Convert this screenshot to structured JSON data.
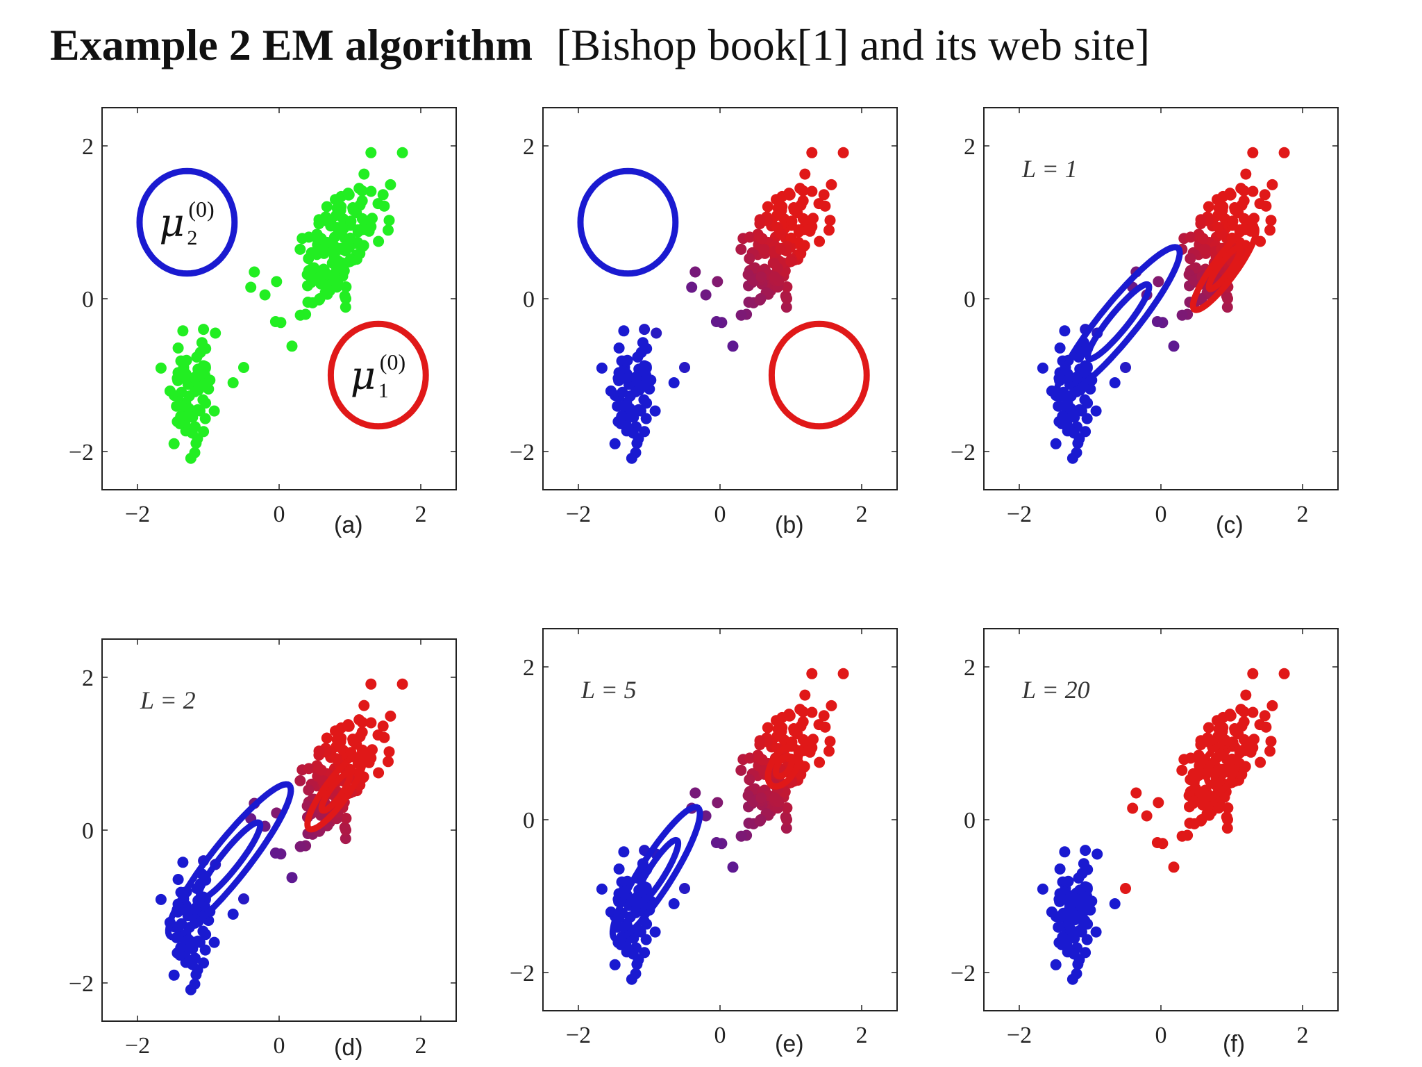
{
  "title": {
    "bold": "Example 2  EM algorithm",
    "normal": "[Bishop book[1] and its web site]"
  },
  "colors": {
    "cluster_blue": "#1a1ad0",
    "cluster_red": "#e01818",
    "unassigned_green": "#22ee22",
    "frame": "#222222"
  },
  "chart_data": [
    {
      "id": "a",
      "type": "scatter",
      "sublabel": "(a)",
      "annotation": "",
      "xlim": [
        -2.5,
        2.5
      ],
      "ylim": [
        -2.5,
        2.5
      ],
      "xticks": [
        -2,
        0,
        2
      ],
      "yticks": [
        -2,
        0,
        2
      ],
      "xtick_labels": [
        "−2",
        "0",
        "2"
      ],
      "ytick_labels": [
        "−2",
        "0",
        "2"
      ],
      "point_color_mode": "green",
      "components": [
        {
          "color": "blue",
          "mean": [
            -1.3,
            1.0
          ],
          "cov": [
            [
              0.45,
              0
            ],
            [
              0,
              0.45
            ]
          ],
          "contours": [
            1
          ],
          "label": "μ",
          "sub": "2",
          "sup": "(0)"
        },
        {
          "color": "red",
          "mean": [
            1.4,
            -1.0
          ],
          "cov": [
            [
              0.45,
              0
            ],
            [
              0,
              0.45
            ]
          ],
          "contours": [
            1
          ],
          "label": "μ",
          "sub": "1",
          "sup": "(0)"
        }
      ]
    },
    {
      "id": "b",
      "type": "scatter",
      "sublabel": "(b)",
      "annotation": "",
      "xlim": [
        -2.5,
        2.5
      ],
      "ylim": [
        -2.5,
        2.5
      ],
      "xticks": [
        -2,
        0,
        2
      ],
      "yticks": [
        -2,
        0,
        2
      ],
      "xtick_labels": [
        "−2",
        "0",
        "2"
      ],
      "ytick_labels": [
        "−2",
        "0",
        "2"
      ],
      "point_color_mode": "gradient",
      "components": [
        {
          "color": "blue",
          "mean": [
            -1.3,
            1.0
          ],
          "cov": [
            [
              0.45,
              0
            ],
            [
              0,
              0.45
            ]
          ],
          "contours": [
            1
          ]
        },
        {
          "color": "red",
          "mean": [
            1.4,
            -1.0
          ],
          "cov": [
            [
              0.45,
              0
            ],
            [
              0,
              0.45
            ]
          ],
          "contours": [
            1
          ]
        }
      ]
    },
    {
      "id": "c",
      "type": "scatter",
      "sublabel": "(c)",
      "annotation": "L = 1",
      "xlim": [
        -2.5,
        2.5
      ],
      "ylim": [
        -2.5,
        2.5
      ],
      "xticks": [
        -2,
        0,
        2
      ],
      "yticks": [
        -2,
        0,
        2
      ],
      "xtick_labels": [
        "−2",
        "0",
        "2"
      ],
      "ytick_labels": [
        "−2",
        "0",
        "2"
      ],
      "point_color_mode": "gradient",
      "components": [
        {
          "color": "blue",
          "mean": [
            -0.6,
            -0.3
          ],
          "cov": [
            [
              0.75,
              0.78
            ],
            [
              0.78,
              0.95
            ]
          ],
          "contours": [
            0.5,
            1
          ]
        },
        {
          "color": "red",
          "mean": [
            0.9,
            0.4
          ],
          "cov": [
            [
              0.2,
              0.22
            ],
            [
              0.22,
              0.3
            ]
          ],
          "contours": [
            0.5,
            1
          ]
        }
      ]
    },
    {
      "id": "d",
      "type": "scatter",
      "sublabel": "(d)",
      "annotation": "L = 2",
      "xlim": [
        -2.5,
        2.5
      ],
      "ylim": [
        -2.5,
        2.5
      ],
      "xticks": [
        -2,
        0,
        2
      ],
      "yticks": [
        -2,
        0,
        2
      ],
      "xtick_labels": [
        "−2",
        "0",
        "2"
      ],
      "ytick_labels": [
        "−2",
        "0",
        "2"
      ],
      "point_color_mode": "gradient",
      "components": [
        {
          "color": "blue",
          "mean": [
            -0.7,
            -0.4
          ],
          "cov": [
            [
              0.75,
              0.8
            ],
            [
              0.8,
              1.0
            ]
          ],
          "contours": [
            0.5,
            1
          ]
        },
        {
          "color": "red",
          "mean": [
            0.8,
            0.5
          ],
          "cov": [
            [
              0.16,
              0.17
            ],
            [
              0.17,
              0.24
            ]
          ],
          "contours": [
            0.5,
            1
          ]
        }
      ]
    },
    {
      "id": "e",
      "type": "scatter",
      "sublabel": "(e)",
      "annotation": "L = 5",
      "xlim": [
        -2.5,
        2.5
      ],
      "ylim": [
        -2.5,
        2.5
      ],
      "xticks": [
        -2,
        0,
        2
      ],
      "yticks": [
        -2,
        0,
        2
      ],
      "xtick_labels": [
        "−2",
        "0",
        "2"
      ],
      "ytick_labels": [
        "−2",
        "0",
        "2"
      ],
      "point_color_mode": "gradient",
      "components": [
        {
          "color": "blue",
          "mean": [
            -0.9,
            -0.7
          ],
          "cov": [
            [
              0.38,
              0.48
            ],
            [
              0.48,
              0.75
            ]
          ],
          "contours": [
            0.5,
            1
          ]
        },
        {
          "color": "red",
          "mean": [
            0.9,
            0.7
          ],
          "cov": [
            [
              0.05,
              0.03
            ],
            [
              0.03,
              0.07
            ]
          ],
          "contours": [
            0.5,
            1
          ]
        }
      ]
    },
    {
      "id": "f",
      "type": "scatter",
      "sublabel": "(f)",
      "annotation": "L = 20",
      "xlim": [
        -2.5,
        2.5
      ],
      "ylim": [
        -2.5,
        2.5
      ],
      "xticks": [
        -2,
        0,
        2
      ],
      "yticks": [
        -2,
        0,
        2
      ],
      "xtick_labels": [
        "−2",
        "0",
        "2"
      ],
      "ytick_labels": [
        "−2",
        "0",
        "2"
      ],
      "point_color_mode": "final",
      "components": [
        {
          "color": "blue",
          "mean": [
            -1.2,
            -1.2
          ],
          "cov": [
            [
              0.018,
              0.01
            ],
            [
              0.01,
              0.08
            ]
          ],
          "contours": [
            0.5,
            1
          ]
        },
        {
          "color": "red",
          "mean": [
            0.8,
            0.65
          ],
          "cov": [
            [
              0.09,
              0.06
            ],
            [
              0.06,
              0.14
            ]
          ],
          "contours": [
            0.5,
            1
          ]
        }
      ]
    }
  ]
}
